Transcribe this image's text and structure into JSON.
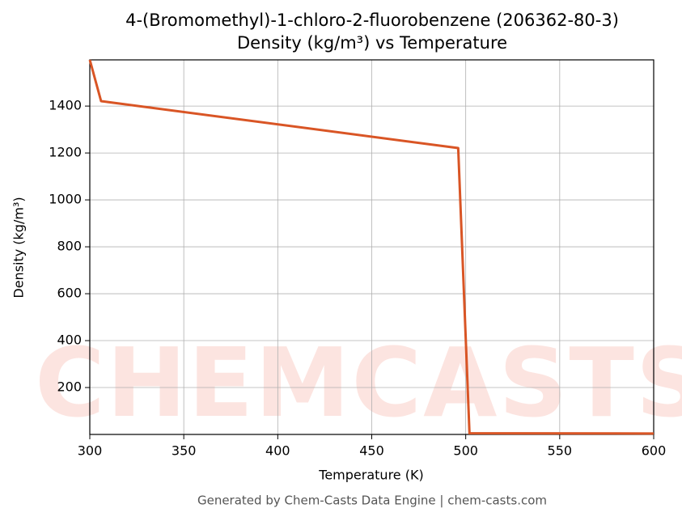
{
  "chart_data": {
    "type": "line",
    "title": "4-(Bromomethyl)-1-chloro-2-fluorobenzene (206362-80-3)",
    "subtitle": "Density (kg/m³) vs Temperature",
    "x_label": "Temperature (K)",
    "y_label": "Density (kg/m³)",
    "footer": "Generated by Chem-Casts Data Engine | chem-casts.com",
    "watermark": "CHEMCASTS",
    "x": [
      300,
      306,
      496,
      502,
      600
    ],
    "series": [
      {
        "name": "Density",
        "color": "#d95525",
        "values": [
          1597,
          1421,
          1221,
          5,
          4
        ]
      }
    ],
    "xlim": [
      300,
      600
    ],
    "xticks": [
      300,
      350,
      400,
      450,
      500,
      550,
      600
    ],
    "ylim": [
      0,
      1597
    ],
    "yticks": [
      200,
      400,
      600,
      800,
      1000,
      1200,
      1400
    ],
    "grid": true
  }
}
